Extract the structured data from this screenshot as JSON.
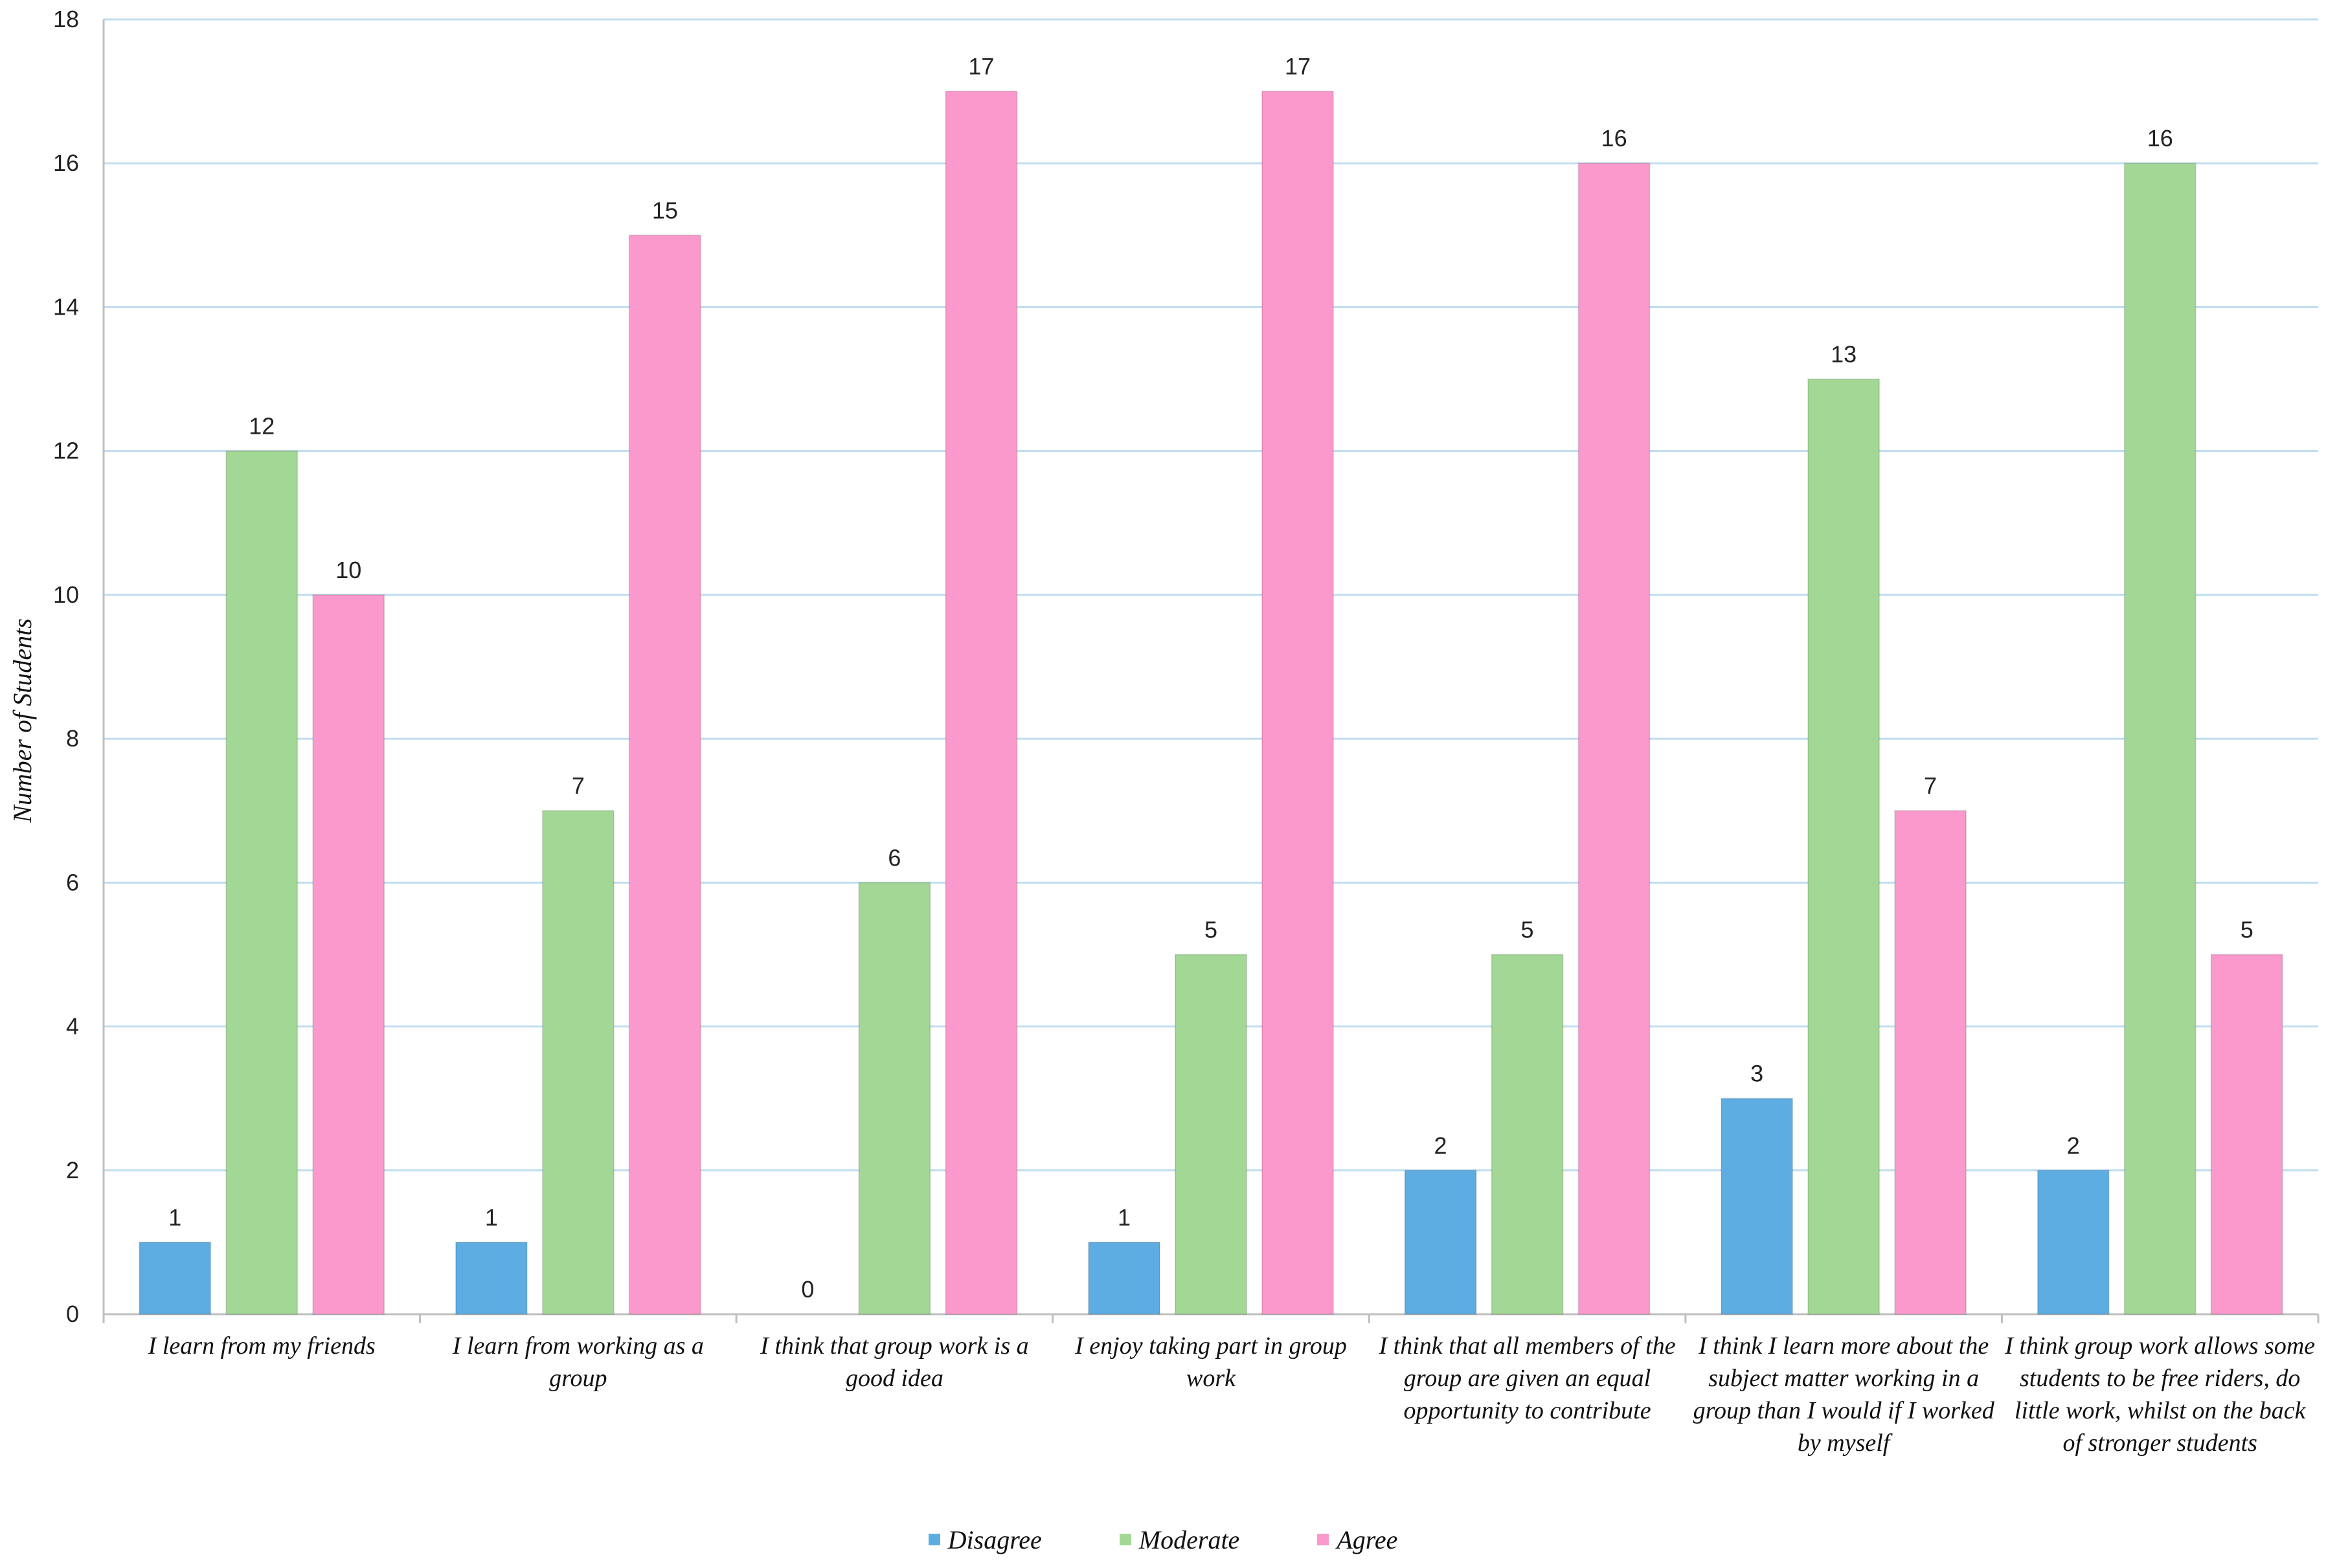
{
  "chart_data": {
    "type": "bar",
    "title": "",
    "xlabel": "",
    "ylabel": "Number of Students",
    "ylim": [
      0,
      18
    ],
    "yticks": [
      0,
      2,
      4,
      6,
      8,
      10,
      12,
      14,
      16,
      18
    ],
    "grid": true,
    "legend_position": "bottom",
    "categories": [
      "I learn from my friends",
      "I learn from working as a group",
      "I think that group work is a good idea",
      "I enjoy taking part in group work",
      "I think that all members of the group are given an equal opportunity to contribute",
      "I think I learn more about the subject matter working in a group than I would if I worked by myself",
      "I think group work allows some students to be free riders, do little work, whilst on the back of stronger students"
    ],
    "series": [
      {
        "name": "Disagree",
        "color": "#5DADE2",
        "values": [
          1,
          1,
          0,
          1,
          2,
          3,
          2
        ]
      },
      {
        "name": "Moderate",
        "color": "#A3D795",
        "values": [
          12,
          7,
          6,
          5,
          5,
          13,
          16
        ]
      },
      {
        "name": "Agree",
        "color": "#FC99CC",
        "values": [
          10,
          15,
          17,
          17,
          16,
          7,
          5
        ]
      }
    ]
  }
}
